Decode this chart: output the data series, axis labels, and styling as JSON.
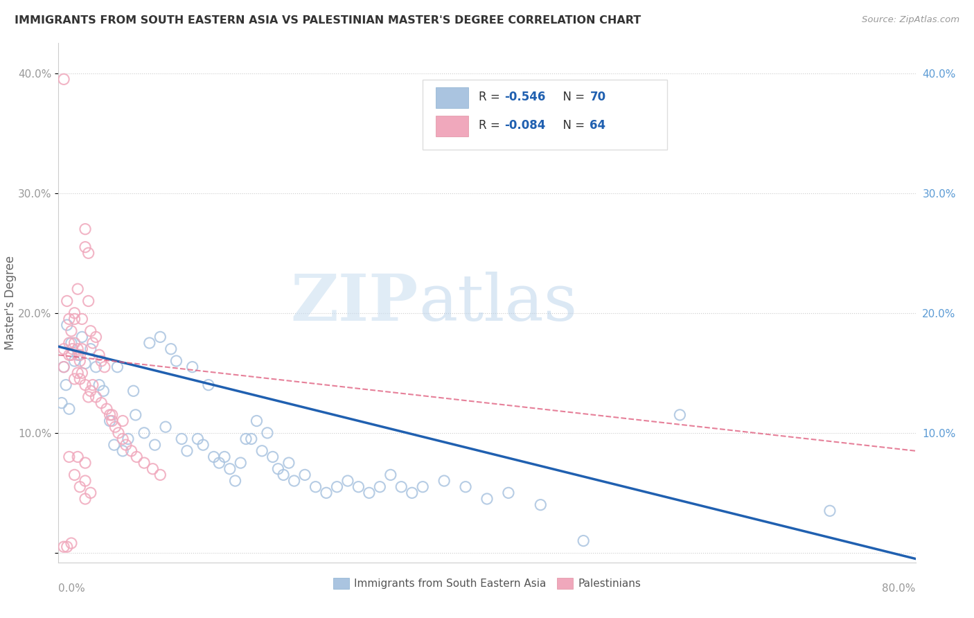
{
  "title": "IMMIGRANTS FROM SOUTH EASTERN ASIA VS PALESTINIAN MASTER'S DEGREE CORRELATION CHART",
  "source": "Source: ZipAtlas.com",
  "ylabel": "Master's Degree",
  "y_ticks": [
    0.0,
    0.1,
    0.2,
    0.3,
    0.4
  ],
  "y_tick_labels_left": [
    "",
    "10.0%",
    "20.0%",
    "30.0%",
    "40.0%"
  ],
  "y_tick_labels_right": [
    "",
    "10.0%",
    "20.0%",
    "30.0%",
    "40.0%"
  ],
  "x_range": [
    0.0,
    0.8
  ],
  "y_range": [
    -0.008,
    0.425
  ],
  "legend_blue_R": "R = -0.546",
  "legend_blue_N": "N = 70",
  "legend_pink_R": "R = -0.084",
  "legend_pink_N": "N = 64",
  "blue_color": "#aac4e0",
  "pink_color": "#f0a8bc",
  "blue_line_color": "#2060b0",
  "pink_line_color": "#e06080",
  "watermark_zip": "ZIP",
  "watermark_atlas": "atlas",
  "blue_line_start_y": 0.172,
  "blue_line_end_y": -0.005,
  "pink_line_start_y": 0.165,
  "pink_line_end_y": 0.085,
  "blue_scatter_x": [
    0.008,
    0.012,
    0.005,
    0.018,
    0.007,
    0.022,
    0.015,
    0.003,
    0.01,
    0.025,
    0.03,
    0.035,
    0.038,
    0.042,
    0.048,
    0.052,
    0.055,
    0.06,
    0.065,
    0.07,
    0.072,
    0.08,
    0.085,
    0.09,
    0.095,
    0.1,
    0.105,
    0.11,
    0.115,
    0.12,
    0.125,
    0.13,
    0.135,
    0.14,
    0.145,
    0.15,
    0.155,
    0.16,
    0.165,
    0.17,
    0.175,
    0.18,
    0.185,
    0.19,
    0.195,
    0.2,
    0.205,
    0.21,
    0.215,
    0.22,
    0.23,
    0.24,
    0.25,
    0.26,
    0.27,
    0.28,
    0.29,
    0.3,
    0.31,
    0.32,
    0.33,
    0.34,
    0.36,
    0.38,
    0.4,
    0.42,
    0.45,
    0.49,
    0.58,
    0.72
  ],
  "blue_scatter_y": [
    0.19,
    0.175,
    0.155,
    0.165,
    0.14,
    0.18,
    0.16,
    0.125,
    0.12,
    0.158,
    0.17,
    0.155,
    0.14,
    0.135,
    0.11,
    0.09,
    0.155,
    0.085,
    0.095,
    0.135,
    0.115,
    0.1,
    0.175,
    0.09,
    0.18,
    0.105,
    0.17,
    0.16,
    0.095,
    0.085,
    0.155,
    0.095,
    0.09,
    0.14,
    0.08,
    0.075,
    0.08,
    0.07,
    0.06,
    0.075,
    0.095,
    0.095,
    0.11,
    0.085,
    0.1,
    0.08,
    0.07,
    0.065,
    0.075,
    0.06,
    0.065,
    0.055,
    0.05,
    0.055,
    0.06,
    0.055,
    0.05,
    0.055,
    0.065,
    0.055,
    0.05,
    0.055,
    0.06,
    0.055,
    0.045,
    0.05,
    0.04,
    0.01,
    0.115,
    0.035
  ],
  "pink_scatter_x": [
    0.005,
    0.005,
    0.005,
    0.008,
    0.01,
    0.012,
    0.01,
    0.013,
    0.01,
    0.015,
    0.015,
    0.015,
    0.018,
    0.018,
    0.02,
    0.02,
    0.022,
    0.022,
    0.025,
    0.025,
    0.028,
    0.028,
    0.03,
    0.032,
    0.035,
    0.038,
    0.04,
    0.043,
    0.045,
    0.048,
    0.05,
    0.053,
    0.056,
    0.06,
    0.063,
    0.068,
    0.073,
    0.08,
    0.088,
    0.095,
    0.015,
    0.02,
    0.025,
    0.03,
    0.035,
    0.04,
    0.05,
    0.06,
    0.018,
    0.025,
    0.012,
    0.022,
    0.032,
    0.015,
    0.025,
    0.02,
    0.03,
    0.025,
    0.012,
    0.008,
    0.005,
    0.01,
    0.018,
    0.028
  ],
  "pink_scatter_y": [
    0.395,
    0.17,
    0.155,
    0.21,
    0.195,
    0.185,
    0.175,
    0.17,
    0.165,
    0.2,
    0.195,
    0.175,
    0.22,
    0.17,
    0.165,
    0.16,
    0.195,
    0.17,
    0.27,
    0.255,
    0.25,
    0.21,
    0.185,
    0.175,
    0.18,
    0.165,
    0.16,
    0.155,
    0.12,
    0.115,
    0.11,
    0.105,
    0.1,
    0.095,
    0.09,
    0.085,
    0.08,
    0.075,
    0.07,
    0.065,
    0.145,
    0.145,
    0.14,
    0.135,
    0.13,
    0.125,
    0.115,
    0.11,
    0.08,
    0.075,
    0.165,
    0.15,
    0.14,
    0.065,
    0.06,
    0.055,
    0.05,
    0.045,
    0.008,
    0.005,
    0.005,
    0.08,
    0.15,
    0.13
  ]
}
